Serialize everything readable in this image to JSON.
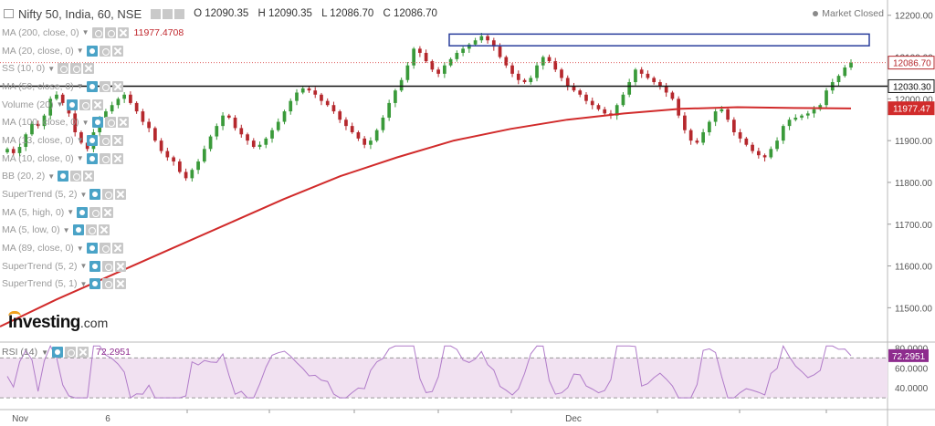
{
  "header": {
    "symbol": "Nifty 50, India, 60, NSE",
    "open": "O 12090.35",
    "high": "H 12090.35",
    "low": "L 12086.70",
    "close": "C 12086.70"
  },
  "market_status": "Market Closed",
  "indicators": [
    {
      "label": "MA (200, close, 0)",
      "value": "11977.4708",
      "icons": [
        "gear-icon",
        "gear-icon",
        "close-icon"
      ]
    },
    {
      "label": "MA (20, close, 0)",
      "value": "",
      "icons": [
        "eye-icon",
        "gear-icon",
        "close-icon"
      ]
    },
    {
      "label": "SS (10, 0)",
      "value": "",
      "icons": [
        "gear-icon",
        "gear-icon",
        "close-icon"
      ]
    },
    {
      "label": "MA (50, close, 0)",
      "value": "",
      "icons": [
        "eye-icon",
        "gear-icon",
        "close-icon"
      ]
    },
    {
      "label": "Volume (20)",
      "value": "",
      "icons": [
        "eye-icon",
        "gear-icon",
        "close-icon"
      ]
    },
    {
      "label": "MA (100, close, 0)",
      "value": "",
      "icons": [
        "eye-icon",
        "gear-icon",
        "close-icon"
      ]
    },
    {
      "label": "MA (13, close, 0)",
      "value": "",
      "icons": [
        "eye-icon",
        "gear-icon",
        "close-icon"
      ]
    },
    {
      "label": "MA (10, close, 0)",
      "value": "",
      "icons": [
        "eye-icon",
        "gear-icon",
        "close-icon"
      ]
    },
    {
      "label": "BB (20, 2)",
      "value": "",
      "icons": [
        "eye-icon",
        "gear-icon",
        "close-icon"
      ]
    },
    {
      "label": "SuperTrend (5, 2)",
      "value": "",
      "icons": [
        "eye-icon",
        "gear-icon",
        "close-icon"
      ]
    },
    {
      "label": "MA (5, high, 0)",
      "value": "",
      "icons": [
        "eye-icon",
        "gear-icon",
        "close-icon"
      ]
    },
    {
      "label": "MA (5, low, 0)",
      "value": "",
      "icons": [
        "eye-icon",
        "gear-icon",
        "close-icon"
      ]
    },
    {
      "label": "MA (89, close, 0)",
      "value": "",
      "icons": [
        "eye-icon",
        "gear-icon",
        "close-icon"
      ]
    },
    {
      "label": "SuperTrend (5, 2)",
      "value": "",
      "icons": [
        "eye-icon",
        "gear-icon",
        "close-icon"
      ]
    },
    {
      "label": "SuperTrend (5, 1)",
      "value": "",
      "icons": [
        "eye-icon",
        "gear-icon",
        "close-icon"
      ]
    }
  ],
  "rsi": {
    "label": "RSI (14)",
    "value": "72.2951"
  },
  "logo": {
    "main": "Investing",
    "suffix": ".com"
  },
  "colors": {
    "up": "#3a9a3a",
    "down": "#b5282d",
    "ma200": "#d12b2b",
    "rsi_line": "#b07bc9",
    "rsi_band": "#f1e1f1",
    "resistance_box": "#2a3e9c"
  },
  "chart_data": {
    "type": "candlestick",
    "title": "Nifty 50, India, 60, NSE",
    "ylim": [
      11420,
      12230
    ],
    "y_ticks": [
      "12200.00",
      "12100.00",
      "12000.00",
      "11900.00",
      "11800.00",
      "11700.00",
      "11600.00",
      "11500.00"
    ],
    "y_tick_values": [
      12200,
      12100,
      12000,
      11900,
      11800,
      11700,
      11600,
      11500
    ],
    "x_ticks": [
      "Nov",
      "6",
      "Dec"
    ],
    "price_labels": [
      {
        "text": "12086.70",
        "value": 12086.7,
        "kind": "last"
      },
      {
        "text": "12030.30",
        "value": 12030.3,
        "kind": "hline"
      },
      {
        "text": "11977.47",
        "value": 11977.47,
        "kind": "ma"
      }
    ],
    "horizontal_line": 12030.3,
    "resistance_zone": {
      "low": 12127,
      "high": 12155
    },
    "ma200": [
      11455,
      11520,
      11580,
      11640,
      11700,
      11760,
      11815,
      11860,
      11900,
      11928,
      11950,
      11965,
      11976,
      11980,
      11978,
      11977
    ],
    "candles_close": [
      11880,
      11870,
      11885,
      11915,
      11940,
      11935,
      11960,
      12000,
      12010,
      11990,
      11965,
      11920,
      11895,
      11880,
      11920,
      11955,
      11970,
      11985,
      12000,
      12010,
      11990,
      11970,
      11945,
      11930,
      11900,
      11875,
      11860,
      11850,
      11825,
      11810,
      11830,
      11850,
      11880,
      11910,
      11935,
      11960,
      11955,
      11930,
      11915,
      11900,
      11885,
      11890,
      11905,
      11925,
      11945,
      11970,
      11995,
      12015,
      12025,
      12020,
      12010,
      11995,
      11985,
      11970,
      11950,
      11935,
      11920,
      11905,
      11890,
      11900,
      11925,
      11955,
      11990,
      12020,
      12045,
      12080,
      12120,
      12110,
      12090,
      12070,
      12060,
      12080,
      12095,
      12110,
      12120,
      12130,
      12140,
      12150,
      12140,
      12125,
      12100,
      12080,
      12060,
      12045,
      12040,
      12050,
      12080,
      12100,
      12090,
      12070,
      12050,
      12030,
      12020,
      12010,
      11995,
      11985,
      11975,
      11965,
      11960,
      11985,
      12010,
      12040,
      12070,
      12060,
      12050,
      12040,
      12030,
      12015,
      12000,
      11960,
      11925,
      11900,
      11895,
      11920,
      11945,
      11970,
      11975,
      11950,
      11920,
      11905,
      11890,
      11875,
      11865,
      11860,
      11880,
      11900,
      11935,
      11950,
      11955,
      11960,
      11965,
      11975,
      11985,
      12020,
      12040,
      12055,
      12075,
      12086.7
    ],
    "rsi": {
      "label": "RSI (14)",
      "ylim": [
        20,
        85
      ],
      "y_ticks": [
        "80.0000",
        "60.0000",
        "40.0000"
      ],
      "y_tick_values": [
        80,
        60,
        40
      ],
      "bands": [
        70,
        30
      ],
      "last": 72.2951
    }
  },
  "scale_labels": {
    "rsi_top_partial": "80.0000"
  }
}
